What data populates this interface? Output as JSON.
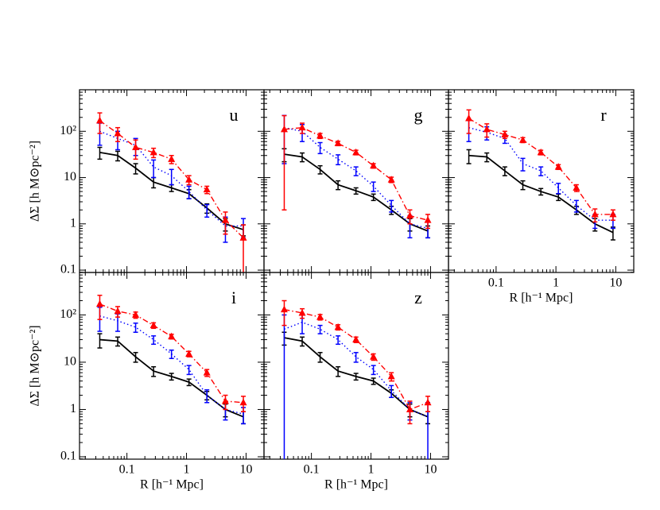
{
  "chart_data": [
    {
      "type": "line",
      "label": "u",
      "ylabel": "ΔΣ [h M⊙pc⁻²]",
      "xtick_labels": false,
      "ytick_labels": true,
      "log_x": true,
      "log_y": true,
      "xlim": [
        0.016,
        20
      ],
      "ylim": [
        0.089,
        790
      ],
      "xticks": [
        0.1,
        1,
        10
      ],
      "yticks": [
        0.1,
        1,
        10,
        {
          "value": 100,
          "label": "10²"
        }
      ],
      "x": [
        0.035,
        0.07,
        0.14,
        0.28,
        0.56,
        1.1,
        2.2,
        4.5,
        9
      ],
      "series": [
        {
          "color": "#000000",
          "dash": "solid",
          "marker": "none",
          "values": [
            35,
            30,
            16,
            8,
            6,
            4.5,
            2.2,
            1.0,
            0.75
          ],
          "errors": [
            10,
            7,
            4,
            2,
            1,
            1,
            0.5,
            0.3,
            0.2
          ]
        },
        {
          "color": "#0000ff",
          "dash": "dotted",
          "marker": "none",
          "values": [
            100,
            70,
            50,
            17,
            11,
            5,
            2.0,
            0.9,
            0.9
          ],
          "errors": [
            50,
            30,
            20,
            7,
            4,
            1.5,
            0.6,
            0.5,
            0.4
          ]
        },
        {
          "color": "#ff0000",
          "dash": "dashdot",
          "marker": "triangle",
          "values": [
            170,
            90,
            45,
            35,
            25,
            9,
            5.5,
            1.2,
            0.5
          ],
          "errors": [
            80,
            30,
            20,
            8,
            5,
            2,
            1,
            0.6,
            0.45
          ]
        }
      ]
    },
    {
      "type": "line",
      "label": "g",
      "xtick_labels": false,
      "ytick_labels": false,
      "log_x": true,
      "log_y": true,
      "xlim": [
        0.016,
        20
      ],
      "ylim": [
        0.089,
        790
      ],
      "xticks": [
        0.1,
        1,
        10
      ],
      "yticks": [
        0.1,
        1,
        10,
        100
      ],
      "x": [
        0.035,
        0.07,
        0.14,
        0.28,
        0.56,
        1.1,
        2.2,
        4.5,
        9
      ],
      "series": [
        {
          "color": "#000000",
          "dash": "solid",
          "marker": "none",
          "values": [
            32,
            28,
            15,
            7,
            5.2,
            3.8,
            2,
            1.0,
            0.7
          ],
          "errors": [
            10,
            6,
            3,
            1.5,
            0.8,
            0.6,
            0.4,
            0.3,
            0.2
          ]
        },
        {
          "color": "#0000ff",
          "dash": "dotted",
          "marker": "none",
          "values": [
            120,
            100,
            45,
            25,
            14,
            6.5,
            2.5,
            1.0,
            0.8
          ],
          "errors": [
            100,
            40,
            12,
            6,
            3,
            1.5,
            0.7,
            0.5,
            0.3
          ]
        },
        {
          "color": "#ff0000",
          "dash": "dashdot",
          "marker": "triangle",
          "values": [
            110,
            120,
            80,
            55,
            35,
            18,
            9,
            1.5,
            1.2
          ],
          "errors": [
            108,
            30,
            10,
            6,
            4,
            2,
            1.2,
            0.5,
            0.4
          ]
        }
      ]
    },
    {
      "type": "line",
      "label": "r",
      "xlabel": "R [h⁻¹ Mpc]",
      "xtick_labels": true,
      "ytick_labels": false,
      "log_x": true,
      "log_y": true,
      "xlim": [
        0.016,
        20
      ],
      "ylim": [
        0.089,
        790
      ],
      "xticks": [
        0.1,
        1,
        10
      ],
      "yticks": [
        0.1,
        1,
        10,
        100
      ],
      "x": [
        0.035,
        0.07,
        0.14,
        0.28,
        0.56,
        1.1,
        2.2,
        4.5,
        9
      ],
      "series": [
        {
          "color": "#000000",
          "dash": "solid",
          "marker": "none",
          "values": [
            30,
            28,
            14,
            7,
            5,
            3.8,
            2,
            1.0,
            0.65
          ],
          "errors": [
            10,
            6,
            3,
            1.5,
            0.8,
            0.6,
            0.4,
            0.3,
            0.2
          ]
        },
        {
          "color": "#0000ff",
          "dash": "dotted",
          "marker": "none",
          "values": [
            120,
            95,
            70,
            20,
            14,
            6,
            2.5,
            1.2,
            1.2
          ],
          "errors": [
            60,
            30,
            15,
            6,
            3,
            1.5,
            0.7,
            0.4,
            0.4
          ]
        },
        {
          "color": "#ff0000",
          "dash": "dashdot",
          "marker": "triangle",
          "values": [
            190,
            110,
            85,
            65,
            35,
            17,
            6,
            1.6,
            1.6
          ],
          "errors": [
            100,
            35,
            15,
            8,
            4,
            2,
            1,
            0.5,
            0.4
          ]
        }
      ]
    },
    {
      "type": "line",
      "label": "i",
      "ylabel": "ΔΣ [h M⊙pc⁻²]",
      "xlabel": "R [h⁻¹ Mpc]",
      "xtick_labels": true,
      "ytick_labels": true,
      "log_x": true,
      "log_y": true,
      "xlim": [
        0.016,
        20
      ],
      "ylim": [
        0.089,
        790
      ],
      "xticks": [
        0.1,
        1,
        10
      ],
      "yticks": [
        0.1,
        1,
        10,
        {
          "value": 100,
          "label": "10²"
        }
      ],
      "x": [
        0.035,
        0.07,
        0.14,
        0.28,
        0.56,
        1.1,
        2.2,
        4.5,
        9
      ],
      "series": [
        {
          "color": "#000000",
          "dash": "solid",
          "marker": "none",
          "values": [
            30,
            28,
            13,
            6.5,
            5,
            3.8,
            2,
            1.0,
            0.7
          ],
          "errors": [
            10,
            6,
            3,
            1.5,
            0.8,
            0.6,
            0.4,
            0.3,
            0.2
          ]
        },
        {
          "color": "#0000ff",
          "dash": "dotted",
          "marker": "none",
          "values": [
            95,
            75,
            55,
            30,
            15,
            7,
            2.0,
            1.0,
            0.8
          ],
          "errors": [
            50,
            30,
            12,
            6,
            3,
            1.5,
            0.6,
            0.4,
            0.3
          ]
        },
        {
          "color": "#ff0000",
          "dash": "dashdot",
          "marker": "triangle",
          "values": [
            170,
            120,
            100,
            60,
            35,
            15,
            6,
            1.5,
            1.4
          ],
          "errors": [
            90,
            30,
            15,
            8,
            4,
            2,
            1,
            0.5,
            0.5
          ]
        }
      ]
    },
    {
      "type": "line",
      "label": "z",
      "xlabel": "R [h⁻¹ Mpc]",
      "xtick_labels": true,
      "ytick_labels": false,
      "log_x": true,
      "log_y": true,
      "xlim": [
        0.016,
        20
      ],
      "ylim": [
        0.089,
        790
      ],
      "xticks": [
        0.1,
        1,
        10
      ],
      "yticks": [
        0.1,
        1,
        10,
        100
      ],
      "x": [
        0.035,
        0.07,
        0.14,
        0.28,
        0.56,
        1.1,
        2.2,
        4.5,
        9
      ],
      "series": [
        {
          "color": "#000000",
          "dash": "solid",
          "marker": "none",
          "values": [
            33,
            28,
            13,
            6.5,
            5,
            4.0,
            2.2,
            1.0,
            0.7
          ],
          "errors": [
            10,
            6,
            3,
            1.5,
            0.8,
            0.6,
            0.4,
            0.3,
            0.2
          ]
        },
        {
          "color": "#0000ff",
          "dash": "dotted",
          "marker": "none",
          "values": [
            50,
            70,
            50,
            30,
            13,
            7,
            2.5,
            1.0,
            0.7
          ],
          "errors": [
            50,
            30,
            10,
            6,
            3,
            1.5,
            0.7,
            0.4,
            0.7
          ]
        },
        {
          "color": "#ff0000",
          "dash": "dashdot",
          "marker": "triangle",
          "values": [
            130,
            110,
            90,
            55,
            30,
            13,
            5,
            1.0,
            1.4
          ],
          "errors": [
            70,
            25,
            12,
            7,
            4,
            2,
            1,
            0.5,
            0.5
          ]
        }
      ]
    }
  ]
}
